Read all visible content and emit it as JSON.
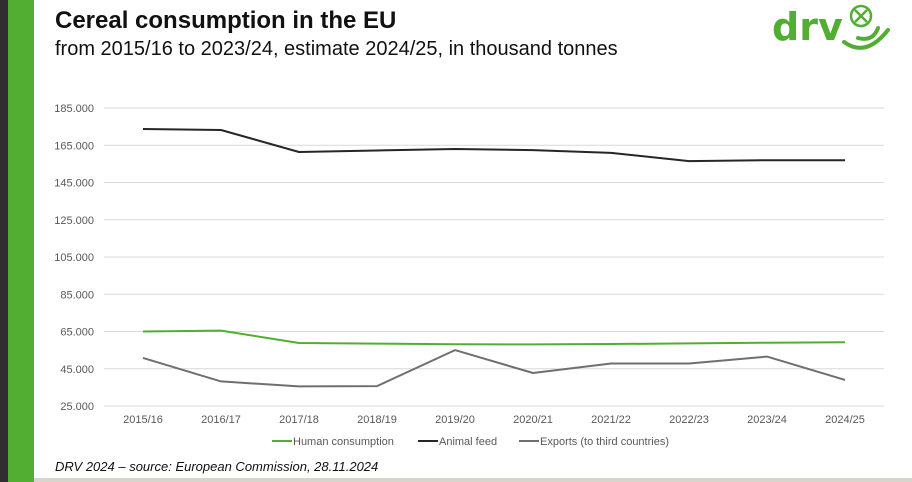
{
  "header": {
    "title": "Cereal consumption in the EU",
    "subtitle": "from 2015/16 to 2023/24, estimate 2024/25, in thousand tonnes"
  },
  "logo": {
    "text": "drv",
    "icon": "drv-cross-circle-icon",
    "color": "#52ae32"
  },
  "footer": {
    "source": "DRV 2024 – source: European Commission, 28.11.2024"
  },
  "colors": {
    "accent": "#52ae32",
    "sidebar_dark": "#2f2f2f"
  },
  "chart_data": {
    "type": "line",
    "title": "Cereal consumption in the EU",
    "subtitle": "from 2015/16 to 2023/24, estimate 2024/25, in thousand tonnes",
    "xlabel": "",
    "ylabel": "",
    "categories": [
      "2015/16",
      "2016/17",
      "2017/18",
      "2018/19",
      "2019/20",
      "2020/21",
      "2021/22",
      "2022/23",
      "2023/24",
      "2024/25"
    ],
    "yticks": [
      "25.000",
      "45.000",
      "65.000",
      "85.000",
      "105.000",
      "125.000",
      "145.000",
      "165.000",
      "185.000"
    ],
    "ylim": [
      25000,
      185000
    ],
    "grid": true,
    "legend_position": "bottom",
    "series": [
      {
        "name": "Human consumption",
        "color": "#52ae32",
        "values": [
          65000,
          65500,
          58800,
          58500,
          58200,
          58100,
          58300,
          58600,
          59000,
          59200
        ]
      },
      {
        "name": "Animal feed",
        "color": "#262626",
        "values": [
          173700,
          173200,
          161400,
          162200,
          163000,
          162400,
          160900,
          156500,
          157000,
          157000
        ]
      },
      {
        "name": "Exports (to third countries)",
        "color": "#6f6f6f",
        "values": [
          50800,
          38200,
          35500,
          35700,
          55000,
          42700,
          47800,
          47800,
          51500,
          39000
        ]
      }
    ]
  }
}
